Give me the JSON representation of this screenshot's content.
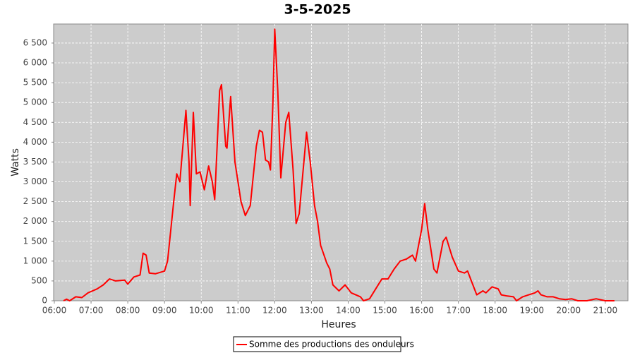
{
  "chart_data": {
    "type": "line",
    "title": "3-5-2025",
    "x_label": "Heures",
    "y_label": "Watts",
    "x": [
      "06:15",
      "06:20",
      "06:25",
      "06:35",
      "06:45",
      "06:55",
      "07:10",
      "07:20",
      "07:30",
      "07:40",
      "07:55",
      "08:00",
      "08:10",
      "08:20",
      "08:25",
      "08:30",
      "08:35",
      "08:45",
      "09:00",
      "09:05",
      "09:15",
      "09:20",
      "09:25",
      "09:35",
      "09:40",
      "09:42",
      "09:47",
      "09:52",
      "09:58",
      "10:05",
      "10:12",
      "10:18",
      "10:22",
      "10:30",
      "10:33",
      "10:40",
      "10:42",
      "10:48",
      "10:55",
      "11:05",
      "11:12",
      "11:20",
      "11:30",
      "11:35",
      "11:40",
      "11:45",
      "11:50",
      "11:53",
      "11:57",
      "12:00",
      "12:05",
      "12:10",
      "12:18",
      "12:23",
      "12:30",
      "12:35",
      "12:40",
      "12:52",
      "12:58",
      "13:05",
      "13:10",
      "13:15",
      "13:25",
      "13:30",
      "13:35",
      "13:45",
      "13:55",
      "14:05",
      "14:20",
      "14:25",
      "14:35",
      "14:45",
      "14:55",
      "15:05",
      "15:15",
      "15:25",
      "15:35",
      "15:45",
      "15:50",
      "16:00",
      "16:05",
      "16:10",
      "16:20",
      "16:25",
      "16:35",
      "16:40",
      "16:50",
      "17:00",
      "17:10",
      "17:15",
      "17:20",
      "17:30",
      "17:40",
      "17:45",
      "17:55",
      "18:05",
      "18:10",
      "18:20",
      "18:30",
      "18:35",
      "18:45",
      "18:55",
      "19:05",
      "19:10",
      "19:15",
      "19:25",
      "19:35",
      "19:45",
      "19:55",
      "20:05",
      "20:15",
      "20:30",
      "20:45",
      "21:00",
      "21:15"
    ],
    "series": [
      {
        "name": "Somme des productions des onduleurs",
        "color": "#ff0000",
        "values": [
          0,
          40,
          0,
          100,
          80,
          200,
          300,
          400,
          550,
          500,
          520,
          420,
          600,
          650,
          1200,
          1150,
          700,
          680,
          750,
          1000,
          2500,
          3200,
          3000,
          4800,
          3500,
          2400,
          4750,
          3200,
          3250,
          2800,
          3400,
          3000,
          2550,
          5300,
          5450,
          3900,
          3850,
          5150,
          3500,
          2500,
          2150,
          2400,
          3900,
          4300,
          4250,
          3550,
          3500,
          3300,
          5000,
          6850,
          5300,
          3100,
          4500,
          4750,
          3300,
          1950,
          2200,
          4250,
          3500,
          2400,
          2000,
          1400,
          950,
          800,
          400,
          250,
          400,
          200,
          100,
          0,
          50,
          300,
          550,
          550,
          800,
          1000,
          1050,
          1150,
          1000,
          1800,
          2450,
          1800,
          800,
          700,
          1500,
          1600,
          1100,
          750,
          700,
          750,
          550,
          150,
          250,
          200,
          350,
          300,
          150,
          120,
          100,
          0,
          100,
          150,
          200,
          250,
          150,
          100,
          100,
          50,
          30,
          50,
          0,
          0,
          50,
          0,
          0
        ]
      }
    ],
    "xlim": [
      "06:00",
      "21:37"
    ],
    "xticks": [
      "06:00",
      "07:00",
      "08:00",
      "09:00",
      "10:00",
      "11:00",
      "12:00",
      "13:00",
      "14:00",
      "15:00",
      "16:00",
      "17:00",
      "18:00",
      "19:00",
      "20:00",
      "21:00"
    ],
    "ylim": [
      0,
      6980
    ],
    "yticks": [
      0,
      500,
      {
        "value": 1000,
        "label": "1 000"
      },
      {
        "value": 1500,
        "label": "1 500"
      },
      {
        "value": 2000,
        "label": "2 000"
      },
      {
        "value": 2500,
        "label": "2 500"
      },
      {
        "value": 3000,
        "label": "3 000"
      },
      {
        "value": 3500,
        "label": "3 500"
      },
      {
        "value": 4000,
        "label": "4 000"
      },
      {
        "value": 4500,
        "label": "4 500"
      },
      {
        "value": 5000,
        "label": "5 000"
      },
      {
        "value": 5500,
        "label": "5 500"
      },
      {
        "value": 6000,
        "label": "6 000"
      },
      {
        "value": 6500,
        "label": "6 500"
      }
    ],
    "grid": true,
    "legend": "bottom"
  }
}
